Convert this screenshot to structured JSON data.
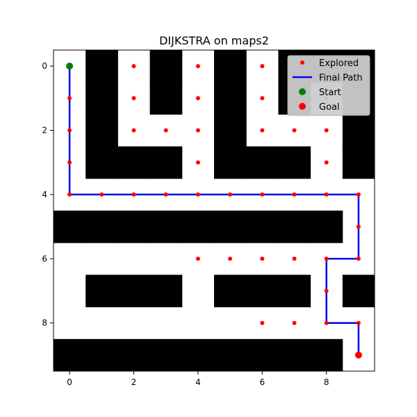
{
  "chart_data": {
    "type": "scatter",
    "title": "DIJKSTRA on maps2",
    "grid_size": 10,
    "xlim": [
      -0.5,
      9.5
    ],
    "ylim": [
      9.5,
      -0.5
    ],
    "x_ticks": [
      0,
      2,
      4,
      6,
      8
    ],
    "y_ticks": [
      0,
      2,
      4,
      6,
      8
    ],
    "walls": [
      [
        1,
        0
      ],
      [
        1,
        1
      ],
      [
        1,
        2
      ],
      [
        1,
        3
      ],
      [
        3,
        0
      ],
      [
        3,
        1
      ],
      [
        5,
        0
      ],
      [
        5,
        1
      ],
      [
        5,
        2
      ],
      [
        5,
        3
      ],
      [
        2,
        3
      ],
      [
        3,
        3
      ],
      [
        6,
        3
      ],
      [
        7,
        3
      ],
      [
        7,
        0
      ],
      [
        8,
        0
      ],
      [
        9,
        0
      ],
      [
        7,
        1
      ],
      [
        9,
        1
      ],
      [
        9,
        2
      ],
      [
        9,
        3
      ],
      [
        0,
        5
      ],
      [
        1,
        5
      ],
      [
        2,
        5
      ],
      [
        3,
        5
      ],
      [
        4,
        5
      ],
      [
        5,
        5
      ],
      [
        6,
        5
      ],
      [
        7,
        5
      ],
      [
        8,
        5
      ],
      [
        1,
        7
      ],
      [
        2,
        7
      ],
      [
        3,
        7
      ],
      [
        5,
        7
      ],
      [
        6,
        7
      ],
      [
        7,
        7
      ],
      [
        9,
        7
      ],
      [
        0,
        9
      ],
      [
        1,
        9
      ],
      [
        2,
        9
      ],
      [
        3,
        9
      ],
      [
        4,
        9
      ],
      [
        5,
        9
      ],
      [
        6,
        9
      ],
      [
        7,
        9
      ],
      [
        8,
        9
      ]
    ],
    "explored": [
      [
        0,
        0
      ],
      [
        2,
        0
      ],
      [
        4,
        0
      ],
      [
        6,
        0
      ],
      [
        8,
        0
      ],
      [
        0,
        1
      ],
      [
        2,
        1
      ],
      [
        4,
        1
      ],
      [
        6,
        1
      ],
      [
        8,
        1
      ],
      [
        0,
        2
      ],
      [
        2,
        2
      ],
      [
        3,
        2
      ],
      [
        4,
        2
      ],
      [
        6,
        2
      ],
      [
        7,
        2
      ],
      [
        8,
        2
      ],
      [
        0,
        3
      ],
      [
        4,
        3
      ],
      [
        8,
        3
      ],
      [
        0,
        4
      ],
      [
        1,
        4
      ],
      [
        2,
        4
      ],
      [
        3,
        4
      ],
      [
        4,
        4
      ],
      [
        5,
        4
      ],
      [
        6,
        4
      ],
      [
        7,
        4
      ],
      [
        8,
        4
      ],
      [
        9,
        4
      ],
      [
        9,
        5
      ],
      [
        4,
        6
      ],
      [
        5,
        6
      ],
      [
        6,
        6
      ],
      [
        7,
        6
      ],
      [
        8,
        6
      ],
      [
        9,
        6
      ],
      [
        8,
        7
      ],
      [
        6,
        8
      ],
      [
        7,
        8
      ],
      [
        8,
        8
      ],
      [
        9,
        8
      ]
    ],
    "final_path": [
      [
        0,
        0
      ],
      [
        0,
        4
      ],
      [
        9,
        4
      ],
      [
        9,
        6
      ],
      [
        8,
        6
      ],
      [
        8,
        8
      ],
      [
        9,
        8
      ],
      [
        9,
        9
      ]
    ],
    "start": [
      0,
      0
    ],
    "goal": [
      9,
      9
    ],
    "legend_position": "top-right",
    "legend": {
      "explored": "Explored",
      "final_path": "Final Path",
      "start": "Start",
      "goal": "Goal"
    },
    "colors": {
      "wall": "#000000",
      "explored": "#ff0000",
      "final_path": "#0000ee",
      "start": "#008000",
      "goal": "#ff0000"
    }
  }
}
